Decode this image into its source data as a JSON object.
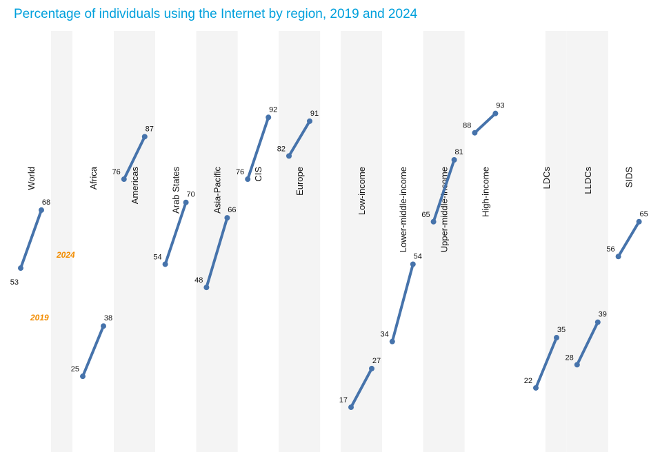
{
  "chart_data": {
    "type": "line",
    "title": "Percentage of individuals using the Internet by region, 2019 and 2024",
    "series_labels": {
      "start": "2019",
      "end": "2024"
    },
    "colors": {
      "line": "#4673ab",
      "title": "#00a0dc",
      "year_label": "#f28c00",
      "band": "#f4f4f4"
    },
    "categories": [
      "World",
      "Africa",
      "Americas",
      "Arab States",
      "Asia-Pacific",
      "CIS",
      "Europe",
      "Low-income",
      "Lower-middle-income",
      "Upper-middle-income",
      "High-income",
      "LDCs",
      "LLDCs",
      "SIDS"
    ],
    "values_2019": [
      53,
      25,
      76,
      54,
      48,
      76,
      82,
      17,
      34,
      65,
      88,
      22,
      28,
      56
    ],
    "values_2024": [
      68,
      38,
      87,
      70,
      66,
      92,
      91,
      27,
      54,
      81,
      93,
      35,
      39,
      65
    ],
    "ylim": [
      0,
      100
    ]
  }
}
